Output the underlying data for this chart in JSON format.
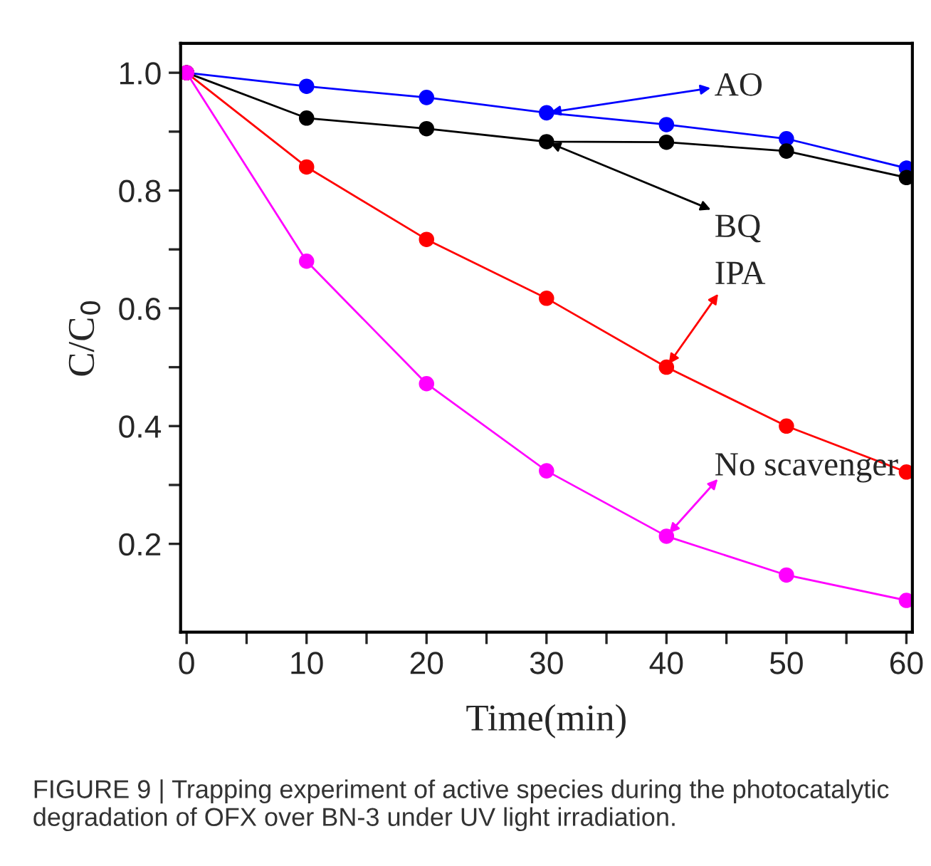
{
  "chart_data": {
    "type": "line",
    "xlabel": "Time(min)",
    "ylabel": "C/C$_{0}$",
    "x": [
      0,
      10,
      20,
      30,
      40,
      50,
      60
    ],
    "series": [
      {
        "name": "AO",
        "color": "#0000ff",
        "values": [
          1.0,
          0.977,
          0.958,
          0.932,
          0.912,
          0.888,
          0.838
        ]
      },
      {
        "name": "BQ",
        "color": "#000000",
        "values": [
          1.0,
          0.923,
          0.905,
          0.883,
          0.882,
          0.867,
          0.822
        ]
      },
      {
        "name": "IPA",
        "color": "#ff0000",
        "values": [
          1.0,
          0.84,
          0.717,
          0.617,
          0.5,
          0.4,
          0.322
        ]
      },
      {
        "name": "No scavenger",
        "color": "#ff00ff",
        "values": [
          1.0,
          0.68,
          0.472,
          0.324,
          0.213,
          0.147,
          0.104
        ]
      }
    ],
    "xlim": [
      -0.5,
      60.5
    ],
    "ylim": [
      0.05,
      1.05
    ],
    "xticks": [
      0,
      {
        "value": 5,
        "label": null
      },
      10,
      {
        "value": 15,
        "label": null
      },
      20,
      {
        "value": 25,
        "label": null
      },
      30,
      {
        "value": 35,
        "label": null
      },
      40,
      {
        "value": 45,
        "label": null
      },
      50,
      {
        "value": 55,
        "label": null
      },
      60
    ],
    "yticks": [
      {
        "value": 0.2,
        "label": "0.2"
      },
      {
        "value": 0.3,
        "label": null
      },
      {
        "value": 0.4,
        "label": "0.4"
      },
      {
        "value": 0.5,
        "label": null
      },
      {
        "value": 0.6,
        "label": "0.6"
      },
      {
        "value": 0.7,
        "label": null
      },
      {
        "value": 0.8,
        "label": "0.8"
      },
      {
        "value": 0.9,
        "label": null
      },
      {
        "value": 1.0,
        "label": "1.0"
      }
    ],
    "marker": "circle",
    "line_style": "solid",
    "grid": false,
    "legend": "right",
    "annotations": [
      "FIGURE 9 | Trapping experiment of active species during the photocatalytic degradation of OFX over BN-3 under UV light irradiation."
    ]
  }
}
